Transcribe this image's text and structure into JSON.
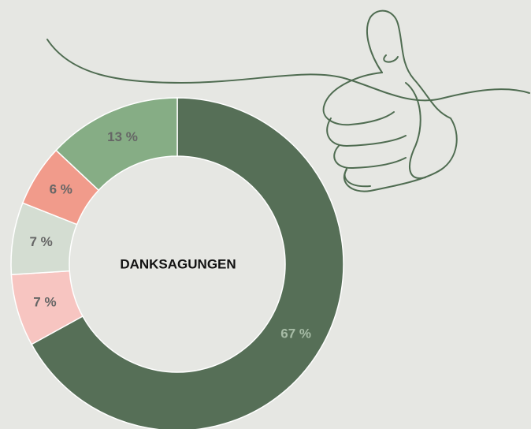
{
  "chart_data": {
    "type": "donut",
    "title": "DANKSAGUNGEN",
    "values": [
      67,
      7,
      7,
      6,
      13
    ],
    "value_labels": [
      "67 %",
      "7 %",
      "7 %",
      "6 %",
      "13 %"
    ],
    "colors": [
      "#566f57",
      "#f7c5c1",
      "#d4ddd2",
      "#f19b8b",
      "#86ad85"
    ],
    "label_colors": [
      "#a7bca6",
      "#666666",
      "#666666",
      "#666666",
      "#666666"
    ]
  }
}
